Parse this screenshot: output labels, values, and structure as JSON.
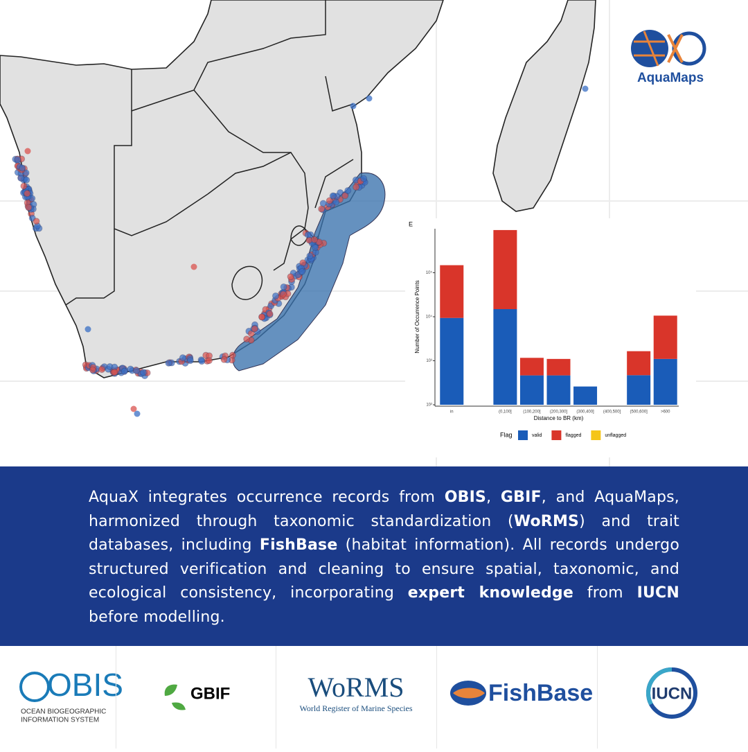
{
  "chart_data": {
    "type": "bar",
    "label": "E",
    "stacked": true,
    "log_scale": true,
    "x_label": "Distance to BR (km)",
    "y_label": "Number of Occurrence Points",
    "categories": [
      "in",
      null,
      "(0,100]",
      "(100,200]",
      "(200,300]",
      "(300,400]",
      "(400,500]",
      "(500,600]",
      ">600"
    ],
    "series": [
      {
        "name": "valid",
        "color": "#1a5cb8",
        "values": [
          9300,
          null,
          14800,
          365,
          365,
          160,
          null,
          370,
          1000
        ]
      },
      {
        "name": "flagged",
        "color": "#d9352a",
        "values": [
          139000,
          null,
          918000,
          700,
          635,
          0,
          null,
          1180,
          9500
        ]
      },
      {
        "name": "unflagged",
        "color": "#f5c518",
        "values": [
          0,
          null,
          0,
          0,
          0,
          0,
          null,
          0,
          0
        ]
      }
    ],
    "ylim": [
      100,
      1000000
    ],
    "yticks": [
      {
        "value": 100,
        "label": "10²"
      },
      {
        "value": 1000,
        "label": "10³"
      },
      {
        "value": 10000,
        "label": "10⁴"
      },
      {
        "value": 100000,
        "label": "10⁵"
      }
    ],
    "legend_title": "Flag",
    "legend": "bottom"
  },
  "brand": {
    "name": "AquaMaps"
  },
  "text": {
    "segments": [
      {
        "text": "AquaX integrates occurrence records from ",
        "bold": false
      },
      {
        "text": "OBIS",
        "bold": true
      },
      {
        "text": ", ",
        "bold": false
      },
      {
        "text": "GBIF",
        "bold": true
      },
      {
        "text": ", and AquaMaps, harmonized through taxonomic standardization (",
        "bold": false
      },
      {
        "text": "WoRMS",
        "bold": true
      },
      {
        "text": ") and trait databases, including ",
        "bold": false
      },
      {
        "text": "FishBase",
        "bold": true
      },
      {
        "text": " (habitat information). All records undergo structured verification and cleaning to ensure spatial, taxonomic, and ecological consistency, incorporating ",
        "bold": false
      },
      {
        "text": "expert knowledge",
        "bold": true
      },
      {
        "text": " from ",
        "bold": false
      },
      {
        "text": "IUCN",
        "bold": true
      },
      {
        "text": " before modelling.",
        "bold": false
      }
    ]
  },
  "logos": {
    "obis": {
      "name": "OBIS",
      "line1": "OCEAN BIOGEOGRAPHIC",
      "line2": "INFORMATION SYSTEM"
    },
    "gbif": {
      "name": "GBIF"
    },
    "worms": {
      "name": "WoRMS",
      "subtitle": "World Register of Marine Species"
    },
    "fishbase": {
      "name": "FishBase"
    },
    "iucn": {
      "name": "IUCN"
    }
  }
}
